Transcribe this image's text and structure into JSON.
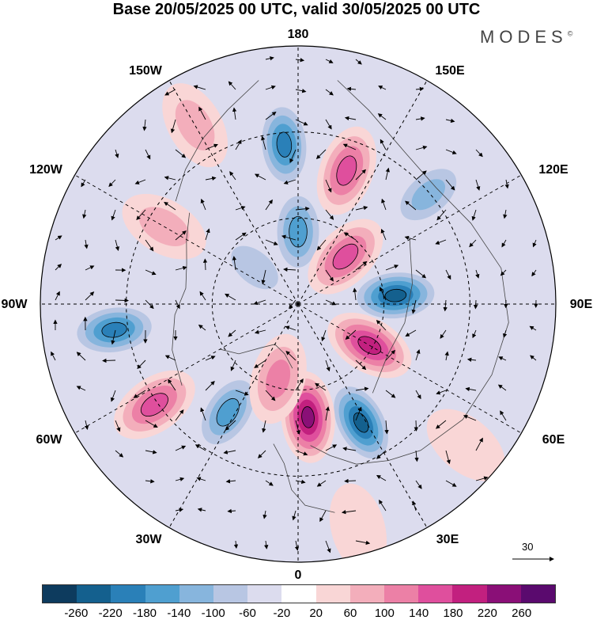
{
  "title": "Base 20/05/2025 00 UTC, valid 30/05/2025 00 UTC",
  "brand": "MODES",
  "brand_mark": "©",
  "longitude_labels": [
    "180",
    "150E",
    "120E",
    "90E",
    "60E",
    "30E",
    "0",
    "30W",
    "60W",
    "90W",
    "120W",
    "150W"
  ],
  "vector_reference": "30",
  "colorbar": {
    "ticks": [
      "-260",
      "-220",
      "-180",
      "-140",
      "-100",
      "-60",
      "-20",
      "20",
      "60",
      "100",
      "140",
      "180",
      "220",
      "260"
    ],
    "colors": [
      "#0d3b5e",
      "#14608e",
      "#2a80b8",
      "#4f9fd0",
      "#87b5dd",
      "#b8c6e3",
      "#dcdcee",
      "#ffffff",
      "#f9d6d6",
      "#f3aebb",
      "#ec80a6",
      "#df4f9d",
      "#c2207f",
      "#8a0f77",
      "#5a0a6e"
    ]
  },
  "anomalies": [
    {
      "lon": 185,
      "r": 0.62,
      "value": -200
    },
    {
      "lon": 160,
      "r": 0.55,
      "value": 170
    },
    {
      "lon": 130,
      "r": 0.66,
      "value": -110
    },
    {
      "lon": 180,
      "r": 0.28,
      "value": -150
    },
    {
      "lon": 135,
      "r": 0.26,
      "value": 170
    },
    {
      "lon": 95,
      "r": 0.38,
      "value": -220
    },
    {
      "lon": 60,
      "r": 0.32,
      "value": 200
    },
    {
      "lon": 28,
      "r": 0.52,
      "value": -230
    },
    {
      "lon": 5,
      "r": 0.44,
      "value": 250
    },
    {
      "lon": 327,
      "r": 0.5,
      "value": -140
    },
    {
      "lon": 305,
      "r": 0.68,
      "value": 160
    },
    {
      "lon": 278,
      "r": 0.72,
      "value": -200
    },
    {
      "lon": 240,
      "r": 0.6,
      "value": 80
    },
    {
      "lon": 210,
      "r": 0.8,
      "value": 60
    },
    {
      "lon": 230,
      "r": 0.22,
      "value": -90
    },
    {
      "lon": 345,
      "r": 0.3,
      "value": 110
    },
    {
      "lon": 50,
      "r": 0.85,
      "value": 40
    },
    {
      "lon": 15,
      "r": 0.9,
      "value": 50
    }
  ]
}
